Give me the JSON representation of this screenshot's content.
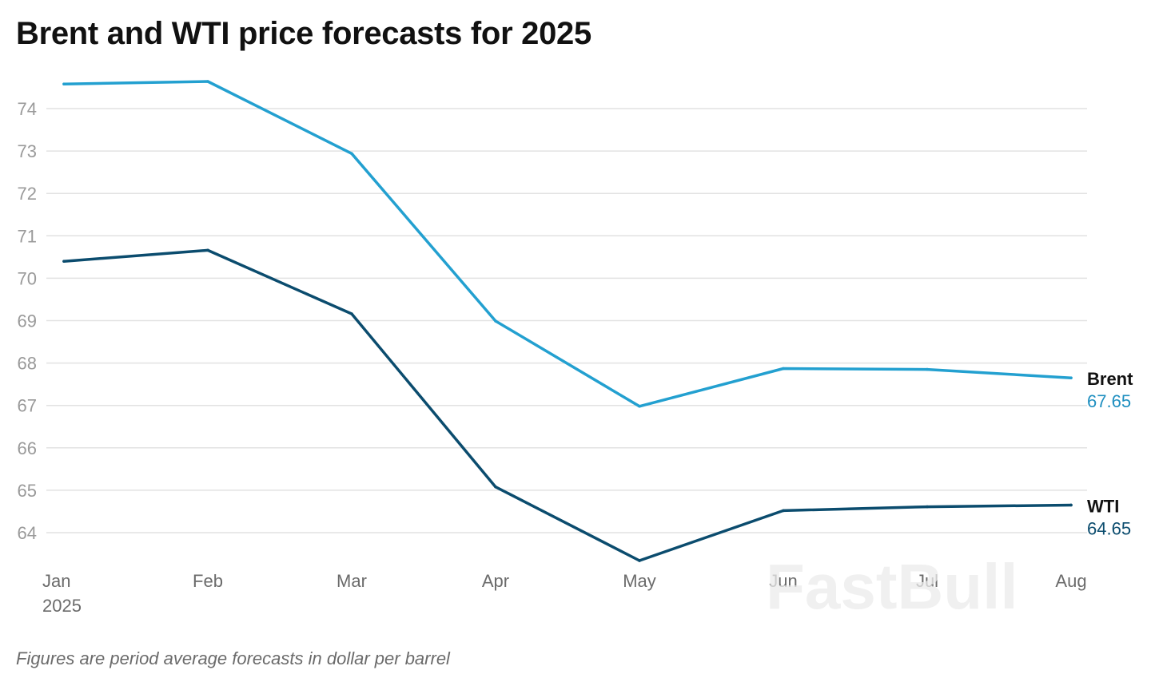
{
  "header": {
    "title": "Brent and WTI price forecasts for 2025"
  },
  "footer": {
    "note": "Figures are period average forecasts in dollar per barrel"
  },
  "watermark": {
    "text": "FastBull"
  },
  "chart_data": {
    "type": "line",
    "title": "Brent and WTI price forecasts for 2025",
    "xlabel": "",
    "ylabel": "",
    "categories": [
      "Jan",
      "Feb",
      "Mar",
      "Apr",
      "May",
      "Jun",
      "Jul",
      "Aug"
    ],
    "first_category_sublabel": "2025",
    "y_ticks": [
      64,
      65,
      66,
      67,
      68,
      69,
      70,
      71,
      72,
      73,
      74
    ],
    "ylim": [
      63.2,
      74.9
    ],
    "grid": true,
    "legend": "end-of-line labels",
    "series": [
      {
        "name": "Brent",
        "color": "#23a0d0",
        "label_color": "#1f8fc0",
        "end_label": "67.65",
        "values": [
          74.58,
          74.64,
          72.94,
          68.99,
          66.98,
          67.87,
          67.85,
          67.65
        ]
      },
      {
        "name": "WTI",
        "color": "#0b4c6e",
        "label_color": "#0b4c6e",
        "end_label": "64.65",
        "values": [
          70.4,
          70.66,
          69.16,
          65.08,
          63.34,
          64.52,
          64.61,
          64.65
        ]
      }
    ]
  }
}
